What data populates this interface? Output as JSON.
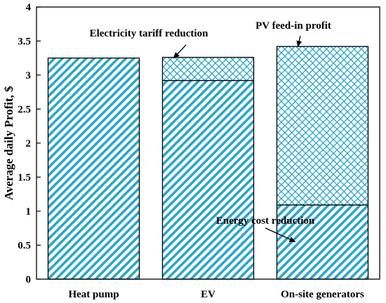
{
  "chart_data": {
    "type": "bar",
    "stacked": true,
    "categories": [
      "Heat pump",
      "EV",
      "On-site generators"
    ],
    "series": [
      {
        "values": [
          3.25,
          2.92,
          1.09
        ],
        "pattern": "diagonal-stripes",
        "color": "#2aa6c8"
      },
      {
        "values": [
          0,
          0.34,
          2.33
        ],
        "pattern": "crosshatch",
        "color": "#2aa6c8"
      }
    ],
    "ylabel": "Average daily Profit, $",
    "xlabel": "",
    "ylim": [
      0,
      4
    ],
    "yticks": [
      0,
      0.5,
      1,
      1.5,
      2,
      2.5,
      3,
      3.5,
      4
    ],
    "ytick_labels": [
      "0",
      "0.5",
      "1",
      "1.5",
      "2",
      "2.5",
      "3",
      "3.5",
      "4"
    ],
    "grid": false,
    "annotations": [
      {
        "text": "Electricity tariff reduction",
        "category": "EV",
        "target_value": 3.25
      },
      {
        "text": "PV feed-in profit",
        "category": "On-site generators",
        "target_value": 3.42
      },
      {
        "text": "Energy cost reduction",
        "category": "On-site generators",
        "target_value": 0.55
      }
    ]
  }
}
